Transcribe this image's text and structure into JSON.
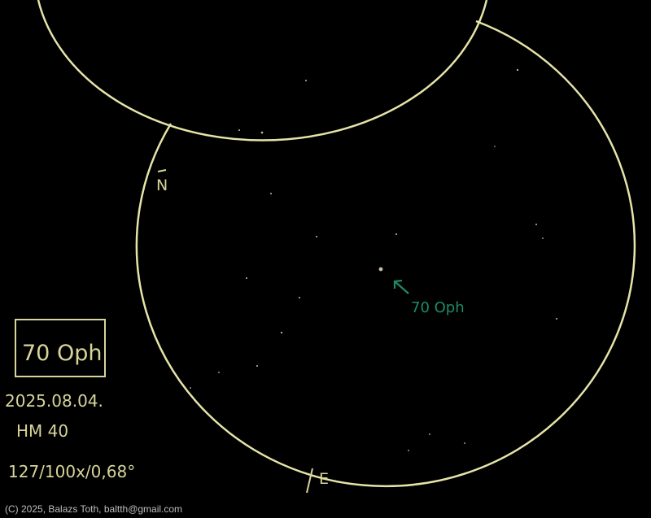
{
  "colors": {
    "background": "#000000",
    "circle_stroke": "#e6e4a8",
    "label_text": "#d8d49a",
    "annotation": "#1f8a6a",
    "star": "#c9c0a3"
  },
  "sketch": {
    "target_label": "70 Oph",
    "date": "2025.08.04.",
    "instrument": "HM 40",
    "settings": "127/100x/0,68°",
    "north_mark": "N",
    "east_mark": "E",
    "pointer_label": "70 Oph",
    "pointer_icon": "arrow-pointer-icon"
  },
  "footer": {
    "credit": "(C) 2025, Balazs Toth, baltth@gmail.com"
  }
}
